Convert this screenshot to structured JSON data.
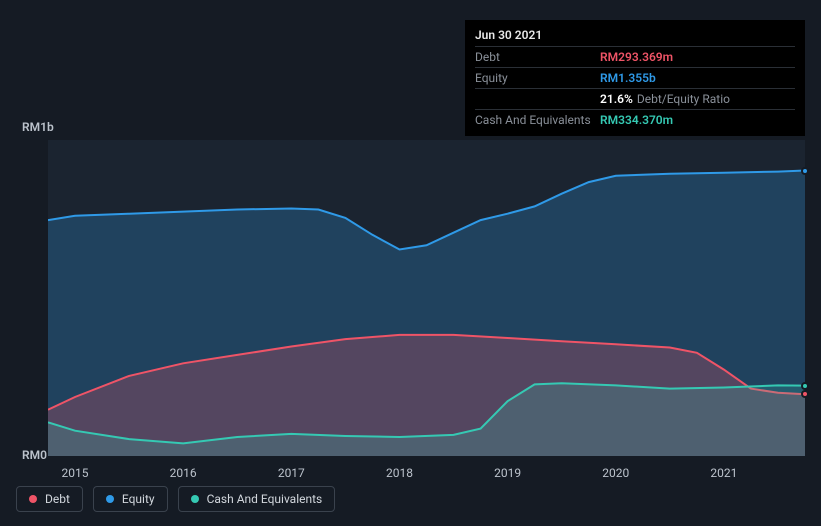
{
  "tooltip": {
    "date": "Jun 30 2021",
    "rows": [
      {
        "label": "Debt",
        "value": "RM293.369m",
        "color": "#ef5467"
      },
      {
        "label": "Equity",
        "value": "RM1.355b",
        "color": "#2f9ae8"
      },
      {
        "label": "",
        "value": "21.6%",
        "suffix": "Debt/Equity Ratio",
        "color": "#ffffff"
      },
      {
        "label": "Cash And Equivalents",
        "value": "RM334.370m",
        "color": "#35c9b3"
      }
    ]
  },
  "chart": {
    "type": "area",
    "background_color": "#1b2430",
    "page_background": "#151b24",
    "x": {
      "ticks": [
        "2015",
        "2016",
        "2017",
        "2018",
        "2019",
        "2020",
        "2021"
      ],
      "range": [
        2014.75,
        2021.75
      ]
    },
    "y": {
      "ticks": [
        {
          "label": "RM1b",
          "value": 1000
        },
        {
          "label": "RM0",
          "value": 0
        }
      ],
      "range": [
        0,
        1500
      ]
    },
    "series": [
      {
        "name": "Equity",
        "color": "#2f9ae8",
        "fill": "rgba(47,154,232,0.25)",
        "line_width": 2,
        "points": [
          [
            2014.75,
            1120
          ],
          [
            2015.0,
            1140
          ],
          [
            2015.5,
            1150
          ],
          [
            2016.0,
            1160
          ],
          [
            2016.5,
            1170
          ],
          [
            2017.0,
            1175
          ],
          [
            2017.25,
            1170
          ],
          [
            2017.5,
            1130
          ],
          [
            2017.75,
            1050
          ],
          [
            2018.0,
            980
          ],
          [
            2018.25,
            1000
          ],
          [
            2018.5,
            1060
          ],
          [
            2018.75,
            1120
          ],
          [
            2019.0,
            1150
          ],
          [
            2019.25,
            1185
          ],
          [
            2019.5,
            1245
          ],
          [
            2019.75,
            1300
          ],
          [
            2020.0,
            1330
          ],
          [
            2020.5,
            1340
          ],
          [
            2021.0,
            1345
          ],
          [
            2021.5,
            1350
          ],
          [
            2021.75,
            1355
          ]
        ]
      },
      {
        "name": "Debt",
        "color": "#ef5467",
        "fill": "rgba(239,84,103,0.25)",
        "line_width": 2,
        "points": [
          [
            2014.75,
            220
          ],
          [
            2015.0,
            280
          ],
          [
            2015.5,
            380
          ],
          [
            2016.0,
            440
          ],
          [
            2016.5,
            480
          ],
          [
            2017.0,
            520
          ],
          [
            2017.5,
            555
          ],
          [
            2018.0,
            575
          ],
          [
            2018.5,
            575
          ],
          [
            2019.0,
            560
          ],
          [
            2019.5,
            545
          ],
          [
            2020.0,
            530
          ],
          [
            2020.5,
            515
          ],
          [
            2020.75,
            490
          ],
          [
            2021.0,
            410
          ],
          [
            2021.25,
            320
          ],
          [
            2021.5,
            300
          ],
          [
            2021.75,
            293
          ]
        ]
      },
      {
        "name": "Cash And Equivalents",
        "color": "#35c9b3",
        "fill": "rgba(53,201,179,0.20)",
        "line_width": 2,
        "points": [
          [
            2014.75,
            160
          ],
          [
            2015.0,
            120
          ],
          [
            2015.5,
            80
          ],
          [
            2016.0,
            60
          ],
          [
            2016.5,
            90
          ],
          [
            2017.0,
            105
          ],
          [
            2017.5,
            95
          ],
          [
            2018.0,
            90
          ],
          [
            2018.5,
            100
          ],
          [
            2018.75,
            130
          ],
          [
            2019.0,
            260
          ],
          [
            2019.25,
            340
          ],
          [
            2019.5,
            345
          ],
          [
            2020.0,
            335
          ],
          [
            2020.5,
            320
          ],
          [
            2021.0,
            325
          ],
          [
            2021.5,
            335
          ],
          [
            2021.75,
            334
          ]
        ]
      }
    ],
    "legend": [
      "Debt",
      "Equity",
      "Cash And Equivalents"
    ],
    "legend_colors": {
      "Debt": "#ef5467",
      "Equity": "#2f9ae8",
      "Cash And Equivalents": "#35c9b3"
    },
    "axis_label_color": "#bcc3cc",
    "axis_label_fontsize": 12
  }
}
